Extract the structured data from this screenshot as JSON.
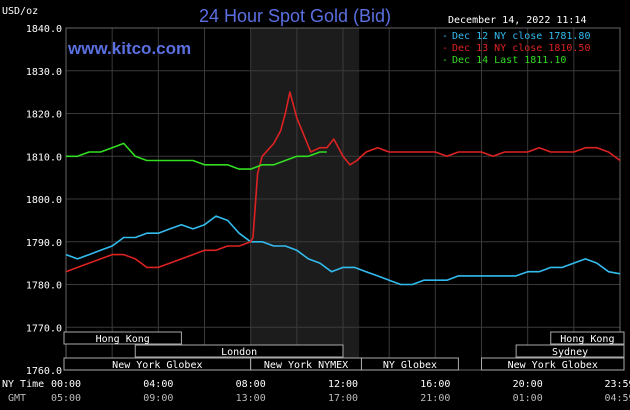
{
  "chart_data": {
    "type": "line",
    "title": "24 Hour Spot Gold (Bid)",
    "website": "www.kitco.com",
    "timestamp": "December 14, 2022 11:14",
    "ylabel": "USD/oz",
    "ylim": [
      1760,
      1840
    ],
    "y_ticks": [
      1760,
      1770,
      1780,
      1790,
      1800,
      1810,
      1820,
      1830,
      1840
    ],
    "y_tick_labels": [
      "1760.0",
      "1770.0",
      "1780.0",
      "1790.0",
      "1800.0",
      "1810.0",
      "1820.0",
      "1830.0",
      "1840.0"
    ],
    "xlim": [
      0,
      24
    ],
    "x_ticks": [
      0,
      4,
      8,
      12,
      16,
      20,
      23.98
    ],
    "x_tick_labels": [
      "00:00",
      "04:00",
      "08:00",
      "12:00",
      "16:00",
      "20:00",
      "23:59"
    ],
    "gmt_tick_labels": [
      "05:00",
      "09:00",
      "13:00",
      "17:00",
      "21:00",
      "01:00",
      "04:59"
    ],
    "x_axis_label_ny": "NY Time",
    "x_axis_label_gmt": "GMT",
    "shaded_region": [
      8,
      12.7
    ],
    "grid": true,
    "series": [
      {
        "name": "Dec 12 NY close 1781.80",
        "color": "#33bbee",
        "x": [
          0,
          0.5,
          1,
          1.5,
          2,
          2.5,
          3,
          3.5,
          4,
          4.5,
          5,
          5.5,
          6,
          6.5,
          7,
          7.5,
          8,
          8.5,
          9,
          9.5,
          10,
          10.5,
          11,
          11.5,
          12,
          12.5,
          13,
          13.5,
          14,
          14.5,
          15,
          15.5,
          16,
          16.5,
          17,
          17.5,
          18,
          18.5,
          19,
          19.5,
          20,
          20.5,
          21,
          21.5,
          22,
          22.5,
          23,
          23.5,
          24
        ],
        "values": [
          1787,
          1786,
          1787,
          1788,
          1789,
          1791,
          1791,
          1792,
          1792,
          1793,
          1794,
          1793,
          1794,
          1796,
          1795,
          1792,
          1790,
          1790,
          1789,
          1789,
          1788,
          1786,
          1785,
          1783,
          1784,
          1784,
          1783,
          1782,
          1781,
          1780,
          1780,
          1781,
          1781,
          1781,
          1782,
          1782,
          1782,
          1782,
          1782,
          1782,
          1783,
          1783,
          1784,
          1784,
          1785,
          1786,
          1785,
          1783,
          1782.5
        ],
        "close": 1781.8
      },
      {
        "name": "Dec 13 NY close 1810.50",
        "color": "#dd2222",
        "x": [
          0,
          0.5,
          1,
          1.5,
          2,
          2.5,
          3,
          3.5,
          4,
          4.5,
          5,
          5.5,
          6,
          6.5,
          7,
          7.5,
          8,
          8.1,
          8.3,
          8.5,
          9,
          9.3,
          9.5,
          9.7,
          10,
          10.3,
          10.6,
          11,
          11.3,
          11.6,
          12,
          12.3,
          12.6,
          13,
          13.5,
          14,
          14.5,
          15,
          15.5,
          16,
          16.5,
          17,
          17.5,
          18,
          18.5,
          19,
          19.5,
          20,
          20.5,
          21,
          21.5,
          22,
          22.5,
          23,
          23.5,
          24
        ],
        "values": [
          1783,
          1784,
          1785,
          1786,
          1787,
          1787,
          1786,
          1784,
          1784,
          1785,
          1786,
          1787,
          1788,
          1788,
          1789,
          1789,
          1790,
          1791,
          1806,
          1810,
          1813,
          1816,
          1820,
          1825,
          1819,
          1815,
          1811,
          1812,
          1812,
          1814,
          1810,
          1808,
          1809,
          1811,
          1812,
          1811,
          1811,
          1811,
          1811,
          1811,
          1810,
          1811,
          1811,
          1811,
          1810,
          1811,
          1811,
          1811,
          1812,
          1811,
          1811,
          1811,
          1812,
          1812,
          1811,
          1809
        ],
        "close": 1810.5
      },
      {
        "name": "Dec 14 Last 1811.10",
        "color": "#33dd22",
        "x": [
          0,
          0.5,
          1,
          1.5,
          2,
          2.5,
          3,
          3.5,
          4,
          4.5,
          5,
          5.5,
          6,
          6.5,
          7,
          7.5,
          8,
          8.5,
          9,
          9.5,
          10,
          10.5,
          11,
          11.3
        ],
        "values": [
          1810,
          1810,
          1811,
          1811,
          1812,
          1813,
          1810,
          1809,
          1809,
          1809,
          1809,
          1809,
          1808,
          1808,
          1808,
          1807,
          1807,
          1808,
          1808,
          1809,
          1810,
          1810,
          1811,
          1811
        ],
        "close": 1811.1
      }
    ]
  },
  "sessions": {
    "row1": [
      {
        "label": "Hong Kong",
        "start": -1,
        "end": 5
      },
      {
        "label": "Hong Kong",
        "start": 21,
        "end": 25
      }
    ],
    "row2": [
      {
        "label": "London",
        "start": 3,
        "end": 12
      },
      {
        "label": "Sydney",
        "start": 19.5,
        "end": 25
      }
    ],
    "row3": [
      {
        "label": "New York Globex",
        "start": -1,
        "end": 8
      },
      {
        "label": "New York NYMEX",
        "start": 8,
        "end": 12.8
      },
      {
        "label": "NY Globex",
        "start": 12.8,
        "end": 17
      },
      {
        "label": "New York Globex",
        "start": 18,
        "end": 25
      }
    ]
  }
}
